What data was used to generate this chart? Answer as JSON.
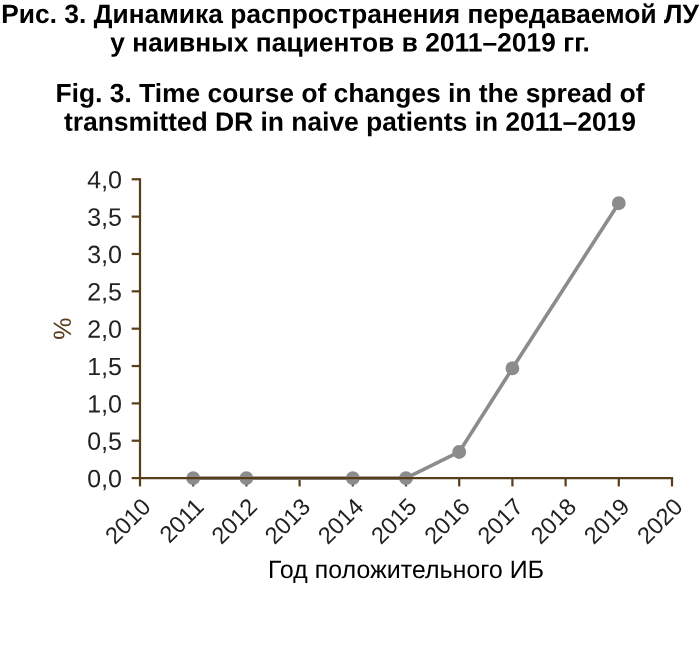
{
  "chart_data": {
    "type": "line",
    "title": "Рис. 3. Динамика распространения передаваемой ЛУ у наивных пациентов в 2011–2019 гг.",
    "subtitle": "Fig. 3. Time course of changes in the spread of transmitted DR in naive patients in 2011–2019",
    "xlabel": "Год положительного ИБ",
    "ylabel": "%",
    "x": [
      2011,
      2012,
      2014,
      2015,
      2016,
      2017,
      2019
    ],
    "series": [
      {
        "color": "#8c8c8c",
        "values": [
          0,
          0,
          0,
          0,
          0.35,
          1.47,
          3.68
        ]
      }
    ],
    "xlim": [
      2010,
      2020
    ],
    "xticks": [
      2010,
      2011,
      2012,
      2013,
      2014,
      2015,
      2016,
      2017,
      2018,
      2019,
      2020
    ],
    "ylim": [
      0,
      4
    ],
    "yticks": [
      {
        "value": 0,
        "label": "0,0"
      },
      {
        "value": 0.5,
        "label": "0,5"
      },
      {
        "value": 1,
        "label": "1,0"
      },
      {
        "value": 1.5,
        "label": "1,5"
      },
      {
        "value": 2,
        "label": "2,0"
      },
      {
        "value": 2.5,
        "label": "2,5"
      },
      {
        "value": 3,
        "label": "3,0"
      },
      {
        "value": 3.5,
        "label": "3,5"
      },
      {
        "value": 4,
        "label": "4,0"
      }
    ],
    "grid": false,
    "legend": false,
    "marker": "circle",
    "line_style": "solid"
  }
}
